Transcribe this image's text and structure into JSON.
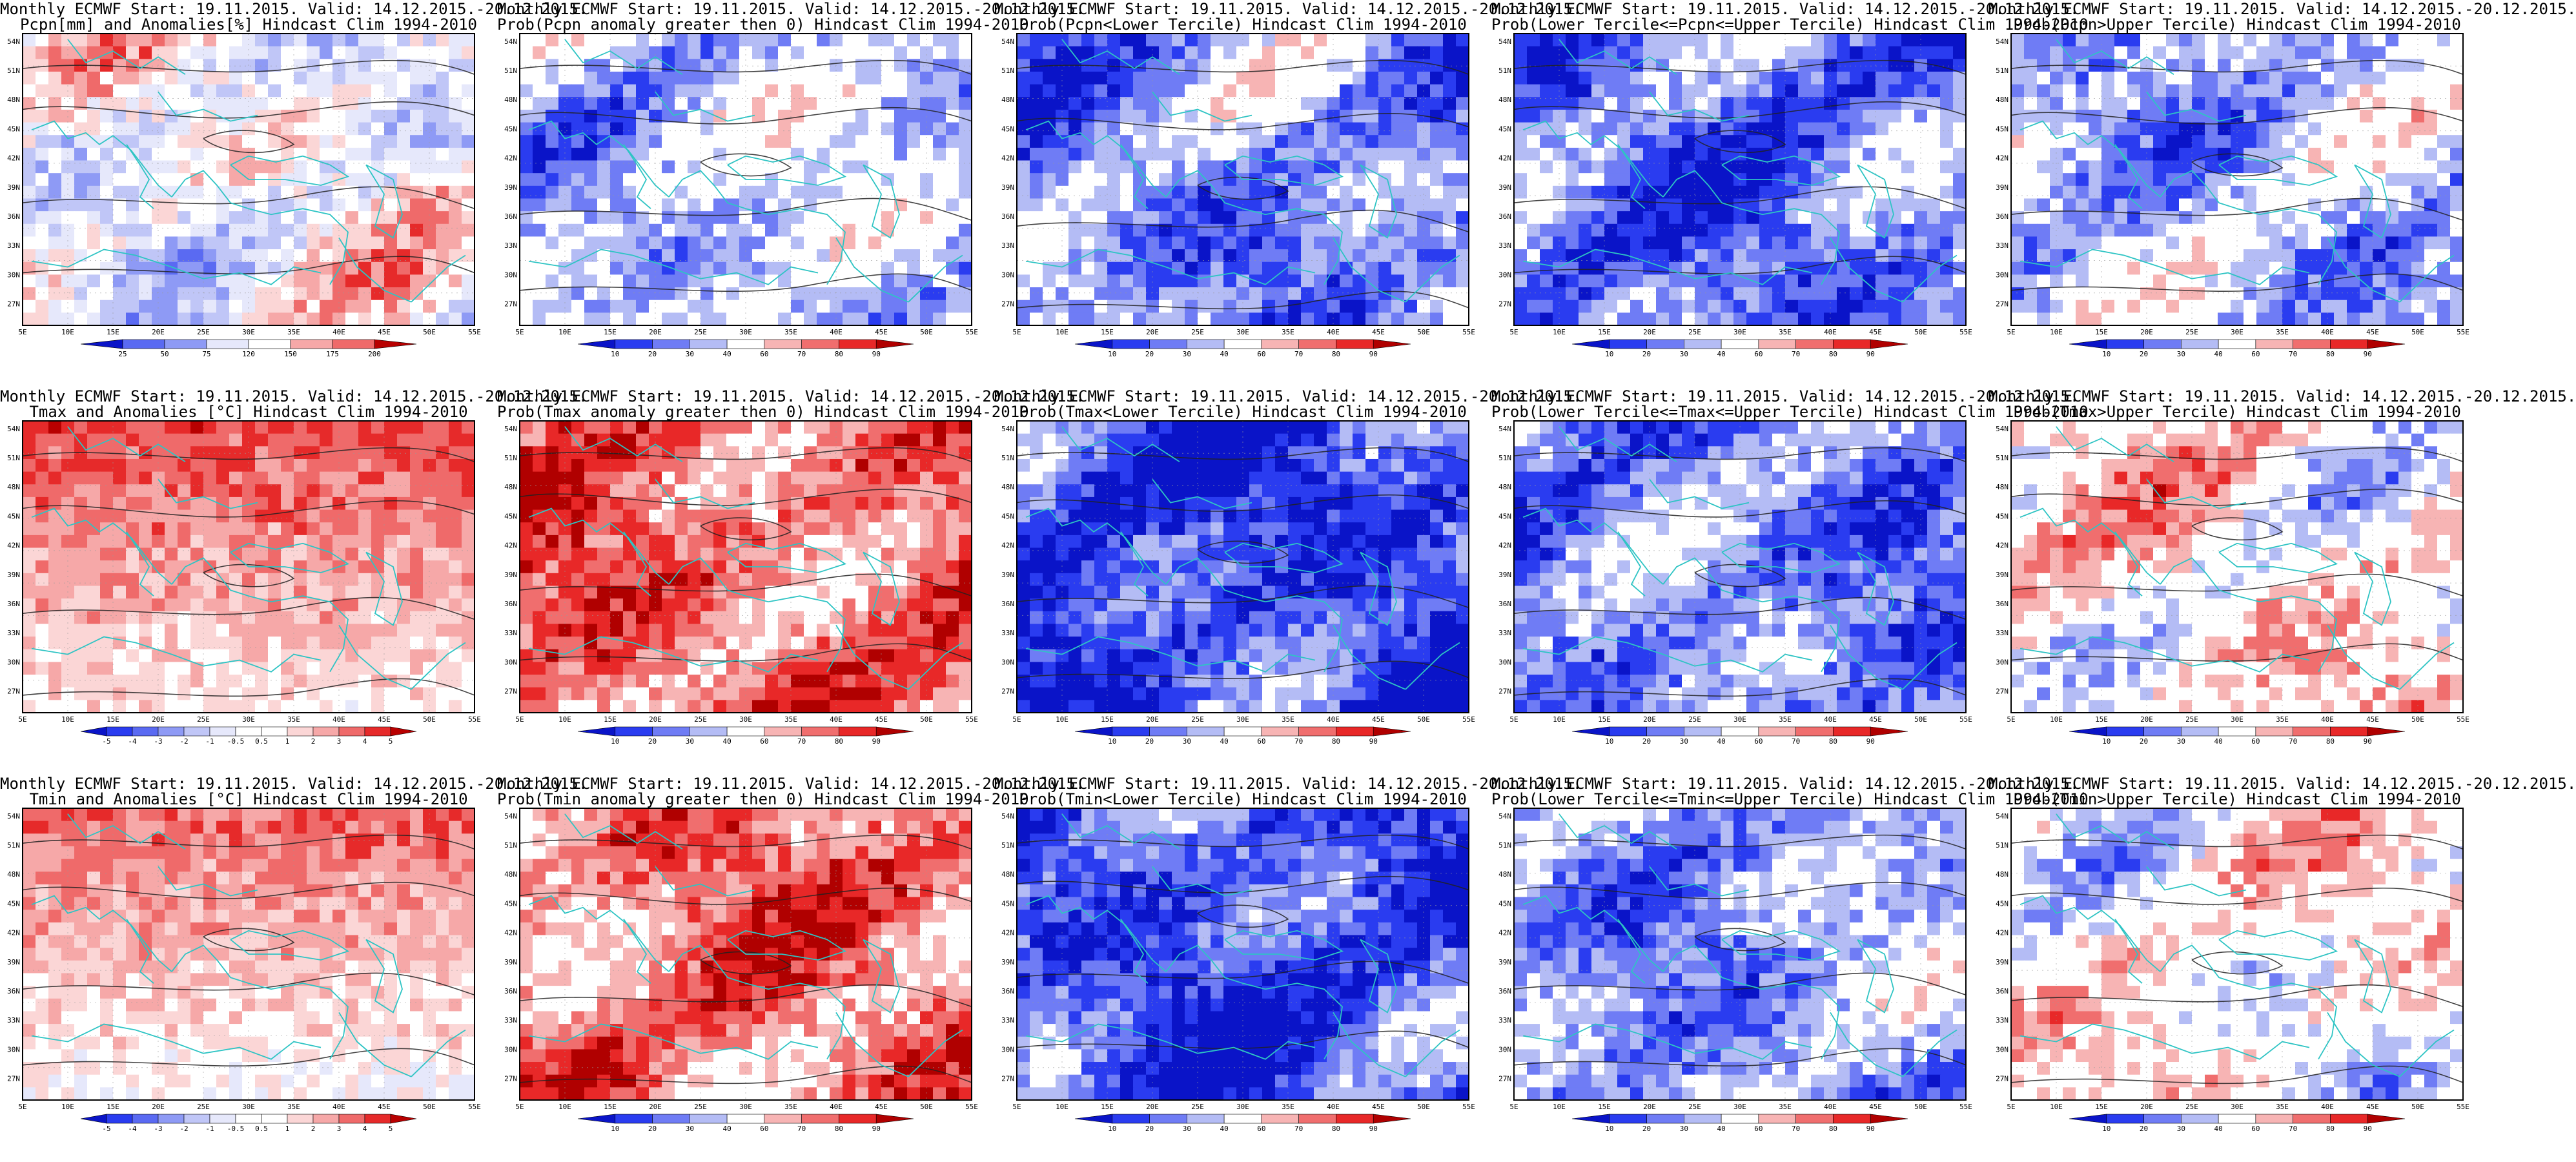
{
  "panels": [
    {
      "title1": "Monthly ECMWF Start: 19.11.2015. Valid: 14.12.2015.-20.12.2015.",
      "title2": "Pcpn[mm] and Anomalies[%] Hindcast Clim 1994-2010",
      "scheme": "anom-prec",
      "ticks": [
        "25",
        "50",
        "75",
        "120",
        "150",
        "175",
        "200"
      ],
      "tint": 0.05
    },
    {
      "title1": "Monthly ECMWF Start: 19.11.2015. Valid: 14.12.2015.-20.12.2015.",
      "title2": "Prob(Pcpn anomaly greater then 0) Hindcast Clim 1994-2010",
      "scheme": "prob",
      "ticks": [
        "10",
        "20",
        "30",
        "40",
        "60",
        "70",
        "80",
        "90"
      ],
      "tint": -0.25
    },
    {
      "title1": "Monthly ECMWF Start: 19.11.2015. Valid: 14.12.2015.-20.12.2015.",
      "title2": "Prob(Pcpn<Lower Tercile) Hindcast Clim 1994-2010",
      "scheme": "prob",
      "ticks": [
        "10",
        "20",
        "30",
        "40",
        "60",
        "70",
        "80",
        "90"
      ],
      "tint": -0.45
    },
    {
      "title1": "Monthly ECMWF Start: 19.11.2015. Valid: 14.12.2015.-20.12.2015.",
      "title2": "Prob(Lower Tercile<=Pcpn<=Upper Tercile) Hindcast Clim 1994-2010",
      "scheme": "prob",
      "ticks": [
        "10",
        "20",
        "30",
        "40",
        "60",
        "70",
        "80",
        "90"
      ],
      "tint": -0.55
    },
    {
      "title1": "Monthly ECMWF Start: 19.11.2015. Valid: 14.12.2015.-20.12.2015.",
      "title2": "Prob(Pcpn>Upper Tercile) Hindcast Clim 1994-2010",
      "scheme": "prob",
      "ticks": [
        "10",
        "20",
        "30",
        "40",
        "60",
        "70",
        "80",
        "90"
      ],
      "tint": -0.3
    },
    {
      "title1": "Monthly ECMWF Start: 19.11.2015. Valid: 14.12.2015.-20.12.2015.",
      "title2": "Tmax and Anomalies [°C] Hindcast Clim 1994-2010",
      "scheme": "anom-temp",
      "ticks": [
        "-5",
        "-4",
        "-3",
        "-2",
        "-1",
        "-0.5",
        "0.5",
        "1",
        "2",
        "3",
        "4",
        "5"
      ],
      "tint": 0.45
    },
    {
      "title1": "Monthly ECMWF Start: 19.11.2015. Valid: 14.12.2015.-20.12.2015.",
      "title2": "Prob(Tmax anomaly greater then 0) Hindcast Clim 1994-2010",
      "scheme": "prob",
      "ticks": [
        "10",
        "20",
        "30",
        "40",
        "60",
        "70",
        "80",
        "90"
      ],
      "tint": 0.55
    },
    {
      "title1": "Monthly ECMWF Start: 19.11.2015. Valid: 14.12.2015.-20.12.2015.",
      "title2": "Prob(Tmax<Lower Tercile) Hindcast Clim 1994-2010",
      "scheme": "prob",
      "ticks": [
        "10",
        "20",
        "30",
        "40",
        "60",
        "70",
        "80",
        "90"
      ],
      "tint": -0.75
    },
    {
      "title1": "Monthly ECMWF Start: 19.11.2015. Valid: 14.12.2015.-20.12.2015.",
      "title2": "Prob(Lower Tercile<=Tmax<=Upper Tercile) Hindcast Clim 1994-2010",
      "scheme": "prob",
      "ticks": [
        "10",
        "20",
        "30",
        "40",
        "60",
        "70",
        "80",
        "90"
      ],
      "tint": -0.5
    },
    {
      "title1": "Monthly ECMWF Start: 19.11.2015. Valid: 14.12.2015.-20.12.2015.",
      "title2": "Prob(Tmax>Upper Tercile) Hindcast Clim 1994-2010",
      "scheme": "prob",
      "ticks": [
        "10",
        "20",
        "30",
        "40",
        "60",
        "70",
        "80",
        "90"
      ],
      "tint": 0.1
    },
    {
      "title1": "Monthly ECMWF Start: 19.11.2015. Valid: 14.12.2015.-20.12.2015.",
      "title2": "Tmin and Anomalies [°C] Hindcast Clim 1994-2010",
      "scheme": "anom-temp",
      "ticks": [
        "-5",
        "-4",
        "-3",
        "-2",
        "-1",
        "-0.5",
        "0.5",
        "1",
        "2",
        "3",
        "4",
        "5"
      ],
      "tint": 0.35
    },
    {
      "title1": "Monthly ECMWF Start: 19.11.2015. Valid: 14.12.2015.-20.12.2015.",
      "title2": "Prob(Tmin anomaly greater then 0) Hindcast Clim 1994-2010",
      "scheme": "prob",
      "ticks": [
        "10",
        "20",
        "30",
        "40",
        "60",
        "70",
        "80",
        "90"
      ],
      "tint": 0.5
    },
    {
      "title1": "Monthly ECMWF Start: 19.11.2015. Valid: 14.12.2015.-20.12.2015.",
      "title2": "Prob(Tmin<Lower Tercile) Hindcast Clim 1994-2010",
      "scheme": "prob",
      "ticks": [
        "10",
        "20",
        "30",
        "40",
        "60",
        "70",
        "80",
        "90"
      ],
      "tint": -0.7
    },
    {
      "title1": "Monthly ECMWF Start: 19.11.2015. Valid: 14.12.2015.-20.12.2015.",
      "title2": "Prob(Lower Tercile<=Tmin<=Upper Tercile) Hindcast Clim 1994-2010",
      "scheme": "prob",
      "ticks": [
        "10",
        "20",
        "30",
        "40",
        "60",
        "70",
        "80",
        "90"
      ],
      "tint": -0.4
    },
    {
      "title1": "Monthly ECMWF Start: 19.11.2015. Valid: 14.12.2015.-20.12.2015.",
      "title2": "Prob(Tmin>Upper Tercile) Hindcast Clim 1994-2010",
      "scheme": "prob",
      "ticks": [
        "10",
        "20",
        "30",
        "40",
        "60",
        "70",
        "80",
        "90"
      ],
      "tint": 0.05
    }
  ],
  "lon_labels": [
    "5E",
    "10E",
    "15E",
    "20E",
    "25E",
    "30E",
    "35E",
    "40E",
    "45E",
    "50E",
    "55E"
  ],
  "lat_labels": [
    "54N",
    "51N",
    "48N",
    "45N",
    "42N",
    "39N",
    "36N",
    "33N",
    "30N",
    "27N"
  ],
  "colors": {
    "coast": "#2ec4c4",
    "contour": "#222222",
    "frame": "#000000",
    "prob_ramp": [
      "#0a14c8",
      "#2a3cf0",
      "#6f7cf5",
      "#b4bcf5",
      "#ffffff",
      "#ffffff",
      "#f7b4b4",
      "#f06e6e",
      "#e82828",
      "#b00000"
    ],
    "anom_ramp": [
      "#0a14c8",
      "#2a3cf0",
      "#5a6af2",
      "#8e9af5",
      "#c0c6f7",
      "#e6e8fb",
      "#ffffff",
      "#fbd6d6",
      "#f6a8a8",
      "#ef6a6a",
      "#e62a2a",
      "#b80000"
    ]
  }
}
